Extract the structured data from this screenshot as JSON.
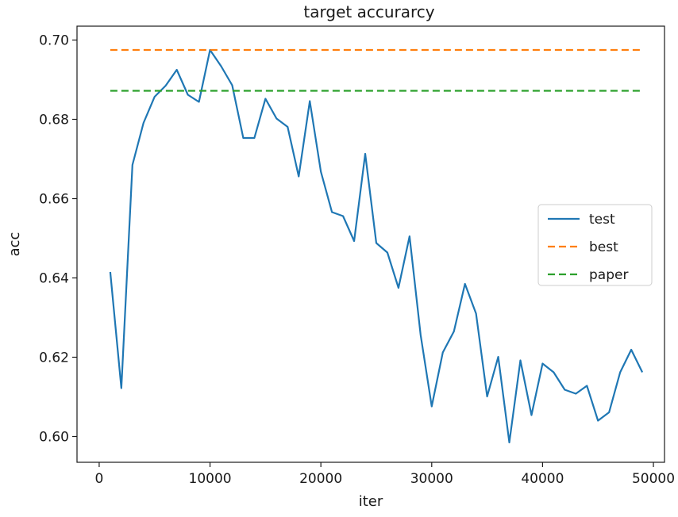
{
  "chart_data": {
    "type": "line",
    "title": "target accurarcy",
    "xlabel": "iter",
    "ylabel": "acc",
    "xlim": [
      -2000,
      51000
    ],
    "ylim": [
      0.5935,
      0.7035
    ],
    "x_ticks": [
      0,
      10000,
      20000,
      30000,
      40000,
      50000
    ],
    "x_tick_labels": [
      "0",
      "10000",
      "20000",
      "30000",
      "40000",
      "50000"
    ],
    "y_ticks": [
      0.6,
      0.62,
      0.64,
      0.66,
      0.68,
      0.7
    ],
    "y_tick_labels": [
      "0.60",
      "0.62",
      "0.64",
      "0.66",
      "0.68",
      "0.70"
    ],
    "grid": false,
    "legend_position": "center-right",
    "series": [
      {
        "name": "test",
        "style": "solid",
        "color": "#1f77b4",
        "x": [
          1000,
          2000,
          3000,
          4000,
          5000,
          6000,
          7000,
          8000,
          9000,
          10000,
          11000,
          12000,
          13000,
          14000,
          15000,
          16000,
          17000,
          18000,
          19000,
          20000,
          21000,
          22000,
          23000,
          24000,
          25000,
          26000,
          27000,
          28000,
          29000,
          30000,
          31000,
          32000,
          33000,
          34000,
          35000,
          36000,
          37000,
          38000,
          39000,
          40000,
          41000,
          42000,
          43000,
          44000,
          45000,
          46000,
          47000,
          48000,
          49000
        ],
        "values": [
          0.6415,
          0.6122,
          0.6685,
          0.6791,
          0.6857,
          0.6885,
          0.6925,
          0.6862,
          0.6844,
          0.6975,
          0.6934,
          0.6886,
          0.6753,
          0.6753,
          0.6852,
          0.6802,
          0.6781,
          0.6656,
          0.6846,
          0.6668,
          0.6566,
          0.6556,
          0.6493,
          0.6713,
          0.6488,
          0.6464,
          0.6375,
          0.6505,
          0.6256,
          0.6076,
          0.6212,
          0.6265,
          0.6385,
          0.631,
          0.6101,
          0.6201,
          0.5985,
          0.6192,
          0.6054,
          0.6184,
          0.6162,
          0.6118,
          0.6108,
          0.6128,
          0.604,
          0.6061,
          0.6162,
          0.6219,
          0.6162
        ]
      },
      {
        "name": "best",
        "style": "dashed",
        "color": "#ff7f0e",
        "x": [
          1000,
          49000
        ],
        "values": [
          0.6975,
          0.6975
        ]
      },
      {
        "name": "paper",
        "style": "dashed",
        "color": "#2ca02c",
        "x": [
          1000,
          49000
        ],
        "values": [
          0.6872,
          0.6872
        ]
      }
    ]
  }
}
